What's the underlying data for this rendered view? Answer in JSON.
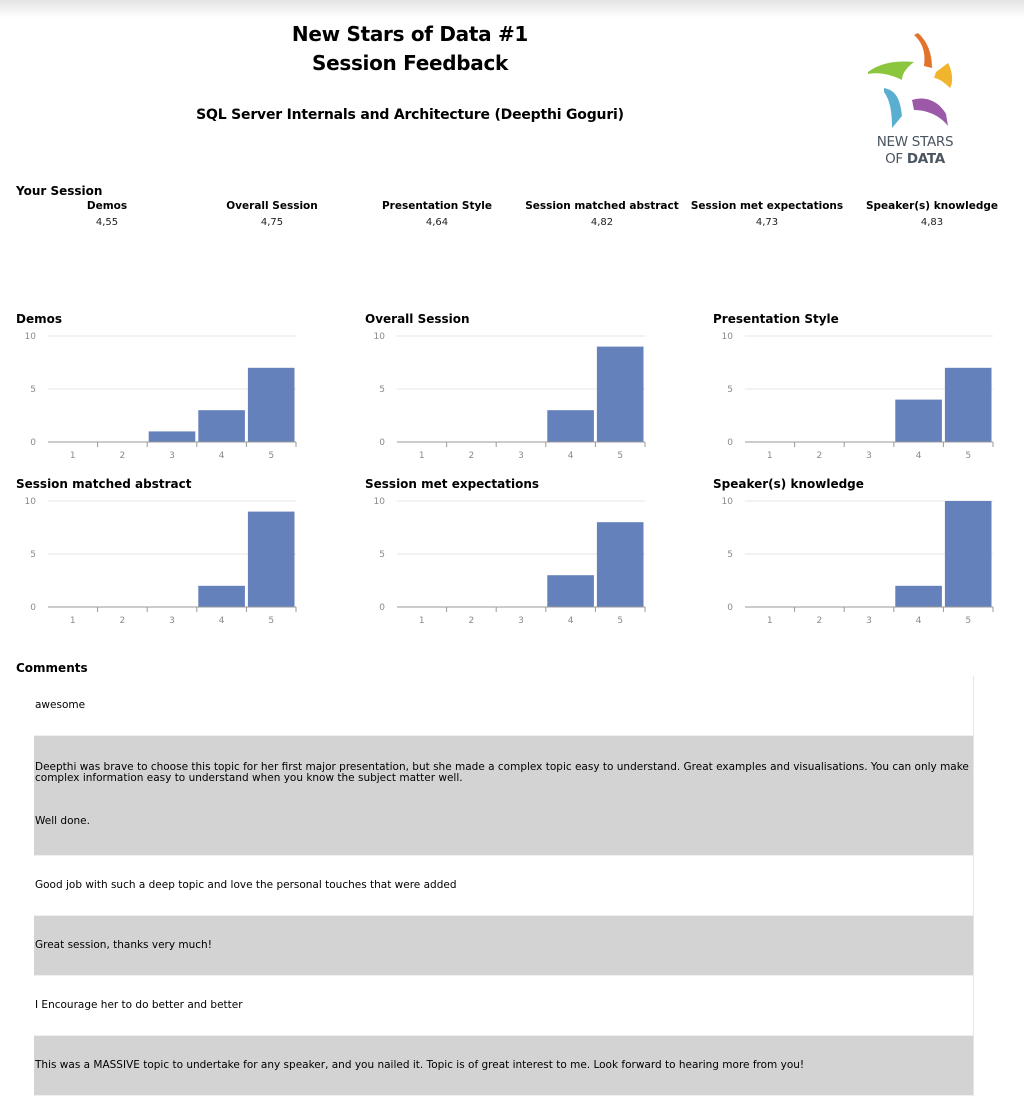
{
  "header": {
    "title_line1": "New Stars of Data #1",
    "title_line2": "Session Feedback",
    "session_title": "SQL Server Internals and Architecture (Deepthi Goguri)",
    "logo": {
      "line1": "NEW STARS",
      "line2_prefix": "OF ",
      "line2_bold": "DATA",
      "colors": [
        "#f0b52c",
        "#e2732a",
        "#8cc63e",
        "#5aaed0",
        "#9b59a8"
      ]
    }
  },
  "your_session": {
    "heading": "Your Session",
    "metrics": [
      {
        "label": "Demos",
        "value": "4,55"
      },
      {
        "label": "Overall Session",
        "value": "4,75"
      },
      {
        "label": "Presentation Style",
        "value": "4,64"
      },
      {
        "label": "Session matched abstract",
        "value": "4,82"
      },
      {
        "label": "Session met expectations",
        "value": "4,73"
      },
      {
        "label": "Speaker(s) knowledge",
        "value": "4,83"
      }
    ]
  },
  "colors": {
    "bar": "#6481bc",
    "grid": "#e6e6e6",
    "axis": "#999999",
    "tick_text": "#8a8a8a"
  },
  "chart_data": [
    {
      "type": "bar",
      "title": "Demos",
      "categories": [
        "1",
        "2",
        "3",
        "4",
        "5"
      ],
      "values": [
        0,
        0,
        1,
        3,
        7
      ],
      "ylim": [
        0,
        10
      ],
      "yticks": [
        "0",
        "5",
        "10"
      ],
      "xlabel": "",
      "ylabel": "",
      "grid": true
    },
    {
      "type": "bar",
      "title": "Overall Session",
      "categories": [
        "1",
        "2",
        "3",
        "4",
        "5"
      ],
      "values": [
        0,
        0,
        0,
        3,
        9
      ],
      "ylim": [
        0,
        10
      ],
      "yticks": [
        "0",
        "5",
        "10"
      ],
      "xlabel": "",
      "ylabel": "",
      "grid": true
    },
    {
      "type": "bar",
      "title": "Presentation Style",
      "categories": [
        "1",
        "2",
        "3",
        "4",
        "5"
      ],
      "values": [
        0,
        0,
        0,
        4,
        7
      ],
      "ylim": [
        0,
        10
      ],
      "yticks": [
        "0",
        "5",
        "10"
      ],
      "xlabel": "",
      "ylabel": "",
      "grid": true
    },
    {
      "type": "bar",
      "title": "Session matched abstract",
      "categories": [
        "1",
        "2",
        "3",
        "4",
        "5"
      ],
      "values": [
        0,
        0,
        0,
        2,
        9
      ],
      "ylim": [
        0,
        10
      ],
      "yticks": [
        "0",
        "5",
        "10"
      ],
      "xlabel": "",
      "ylabel": "",
      "grid": true
    },
    {
      "type": "bar",
      "title": "Session met expectations",
      "categories": [
        "1",
        "2",
        "3",
        "4",
        "5"
      ],
      "values": [
        0,
        0,
        0,
        3,
        8
      ],
      "ylim": [
        0,
        10
      ],
      "yticks": [
        "0",
        "5",
        "10"
      ],
      "xlabel": "",
      "ylabel": "",
      "grid": true
    },
    {
      "type": "bar",
      "title": "Speaker(s) knowledge",
      "categories": [
        "1",
        "2",
        "3",
        "4",
        "5"
      ],
      "values": [
        0,
        0,
        0,
        2,
        10
      ],
      "ylim": [
        0,
        10
      ],
      "yticks": [
        "0",
        "5",
        "10"
      ],
      "xlabel": "",
      "ylabel": "",
      "grid": true
    }
  ],
  "comments": {
    "heading": "Comments",
    "items": [
      {
        "paragraphs": [
          "awesome"
        ]
      },
      {
        "paragraphs": [
          "Deepthi was brave to choose this topic for her first major presentation, but she made a complex topic easy to understand. Great examples and visualisations. You can only make complex information easy to understand when you know the subject matter well.",
          "Well done."
        ]
      },
      {
        "paragraphs": [
          "Good job with such a deep topic and love the personal touches that were added"
        ]
      },
      {
        "paragraphs": [
          "Great session, thanks very much!"
        ]
      },
      {
        "paragraphs": [
          "I Encourage her to do better and better"
        ]
      },
      {
        "paragraphs": [
          "This was a MASSIVE topic to undertake for any speaker, and you nailed it. Topic is of great interest to me. Look forward to hearing more from you!"
        ]
      }
    ]
  }
}
